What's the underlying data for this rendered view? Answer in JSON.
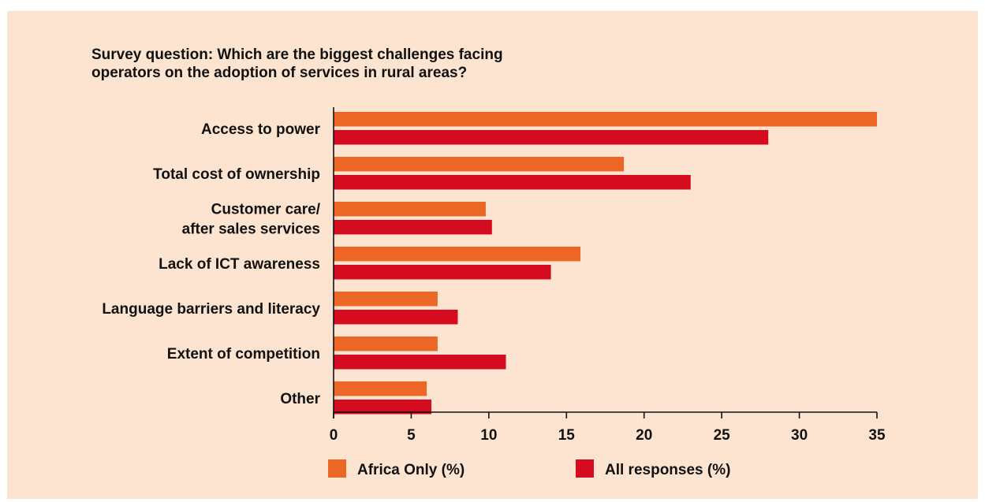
{
  "title_lines": [
    "Survey question: Which are the biggest challenges facing",
    "operators on the adoption of services in rural areas?"
  ],
  "chart_data": {
    "type": "bar",
    "orientation": "horizontal",
    "title": "Survey question: Which are the biggest challenges facing operators on the adoption of services in rural areas?",
    "categories": [
      [
        "Access to power"
      ],
      [
        "Total cost of ownership"
      ],
      [
        "Customer care/",
        "after sales services"
      ],
      [
        "Lack of ICT awareness"
      ],
      [
        "Language barriers and literacy"
      ],
      [
        "Extent of competition"
      ],
      [
        "Other"
      ]
    ],
    "series": [
      {
        "name": "Africa Only (%)",
        "color": "#ec6726",
        "values": [
          35,
          18.7,
          9.8,
          15.9,
          6.7,
          6.7,
          6.0
        ]
      },
      {
        "name": "All responses (%)",
        "color": "#d50b1f",
        "values": [
          28.0,
          23.0,
          10.2,
          14.0,
          8.0,
          11.1,
          6.3
        ]
      }
    ],
    "xlim": [
      0,
      35
    ],
    "xticks": [
      0,
      5,
      10,
      15,
      20,
      25,
      30,
      35
    ],
    "legend_position": "bottom",
    "grid": false
  }
}
